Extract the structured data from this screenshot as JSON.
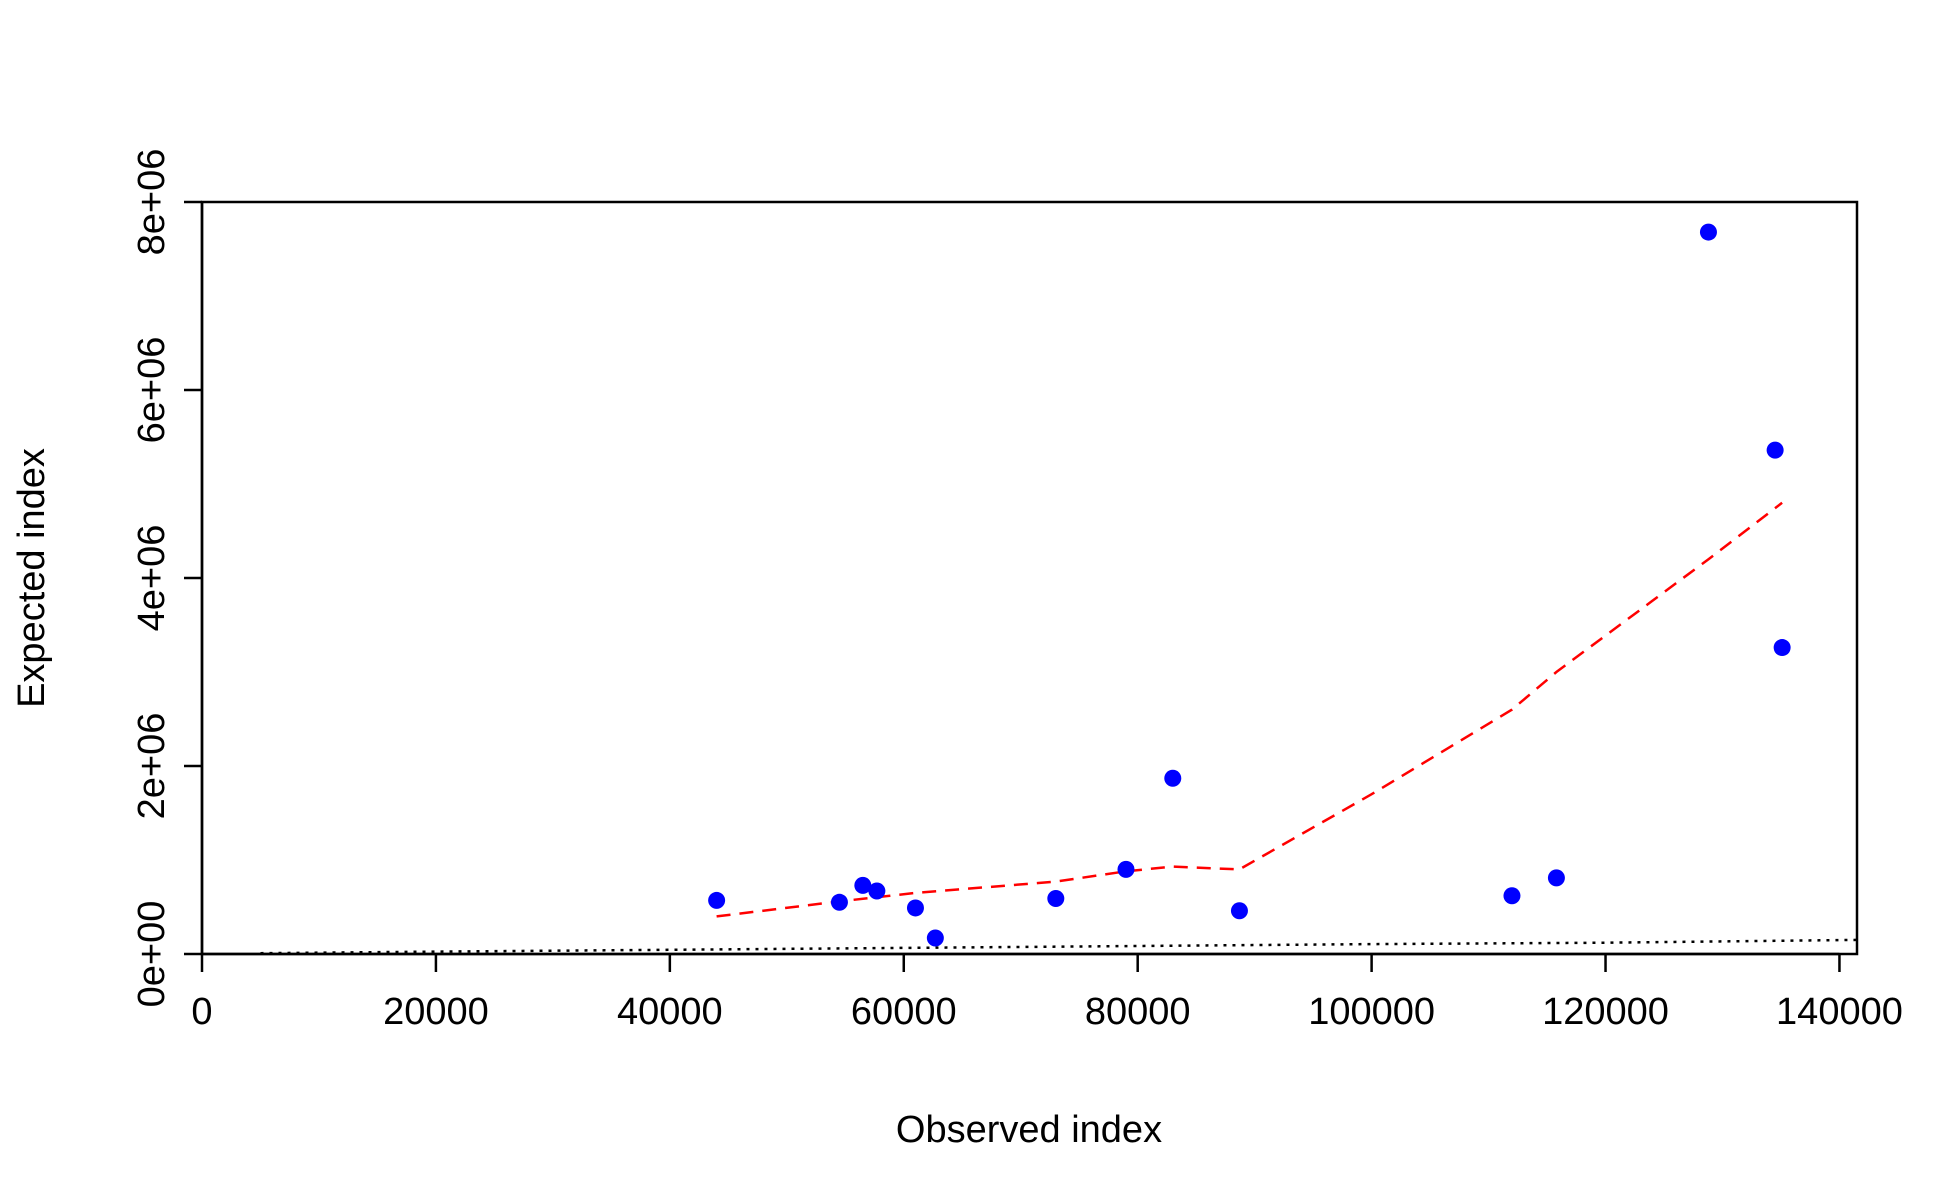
{
  "chart_data": {
    "type": "scatter",
    "title": "",
    "xlabel": "Observed index",
    "ylabel": "Expected index",
    "xlim": [
      0,
      141500
    ],
    "ylim": [
      0,
      8000000
    ],
    "x_ticks": [
      0,
      20000,
      40000,
      60000,
      80000,
      100000,
      120000,
      140000
    ],
    "x_tick_labels": [
      "0",
      "20000",
      "40000",
      "60000",
      "80000",
      "100000",
      "120000",
      "140000"
    ],
    "y_ticks": [
      0,
      2000000,
      4000000,
      6000000,
      8000000
    ],
    "y_tick_labels": [
      "0e+00",
      "2e+06",
      "4e+06",
      "6e+06",
      "8e+06"
    ],
    "grid": false,
    "legend": "none",
    "series": [
      {
        "type": "scatter",
        "color": "#0000ff",
        "points": [
          [
            44000,
            570000
          ],
          [
            54500,
            550000
          ],
          [
            56500,
            730000
          ],
          [
            57700,
            670000
          ],
          [
            61000,
            490000
          ],
          [
            62700,
            170000
          ],
          [
            73000,
            590000
          ],
          [
            79000,
            900000
          ],
          [
            83000,
            1870000
          ],
          [
            88700,
            460000
          ],
          [
            112000,
            620000
          ],
          [
            115800,
            810000
          ],
          [
            128800,
            7680000
          ],
          [
            134500,
            5360000
          ],
          [
            135100,
            3260000
          ]
        ]
      },
      {
        "type": "line",
        "style": "dashed",
        "color": "#ff0000",
        "points": [
          [
            44000,
            400000
          ],
          [
            54500,
            560000
          ],
          [
            61000,
            650000
          ],
          [
            73000,
            770000
          ],
          [
            79000,
            880000
          ],
          [
            83000,
            930000
          ],
          [
            88700,
            900000
          ],
          [
            100000,
            1700000
          ],
          [
            112000,
            2600000
          ],
          [
            115800,
            3000000
          ],
          [
            128800,
            4200000
          ],
          [
            135100,
            4800000
          ]
        ]
      },
      {
        "type": "line",
        "style": "dotted",
        "color": "#000000",
        "points": [
          [
            5000,
            8000
          ],
          [
            20000,
            25000
          ],
          [
            40000,
            45000
          ],
          [
            60000,
            65000
          ],
          [
            80000,
            85000
          ],
          [
            100000,
            105000
          ],
          [
            120000,
            120000
          ],
          [
            141500,
            150000
          ]
        ]
      }
    ]
  }
}
